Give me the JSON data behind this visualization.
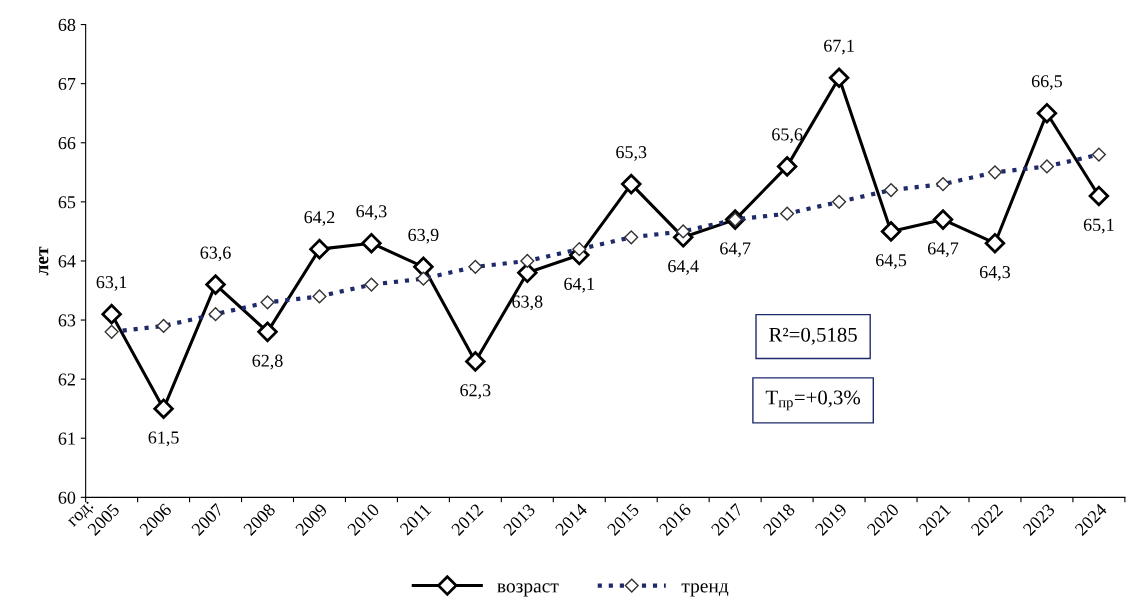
{
  "chart_data": {
    "type": "line",
    "ylabel": "лет",
    "xlabel": "год:",
    "categories": [
      "2005",
      "2006",
      "2007",
      "2008",
      "2009",
      "2010",
      "2011",
      "2012",
      "2013",
      "2014",
      "2015",
      "2016",
      "2017",
      "2018",
      "2019",
      "2020",
      "2021",
      "2022",
      "2023",
      "2024"
    ],
    "series": [
      {
        "name": "возраст",
        "color": "#000000",
        "marker": "diamond",
        "line_style": "solid",
        "values": [
          63.1,
          61.5,
          63.6,
          62.8,
          64.2,
          64.3,
          63.9,
          62.3,
          63.8,
          64.1,
          65.3,
          64.4,
          64.7,
          65.6,
          67.1,
          64.5,
          64.7,
          64.3,
          66.5,
          65.1
        ],
        "value_labels": [
          "63,1",
          "61,5",
          "63,6",
          "62,8",
          "64,2",
          "64,3",
          "63,9",
          "62,3",
          "63,8",
          "64,1",
          "65,3",
          "64,4",
          "64,7",
          "65,6",
          "67,1",
          "64,5",
          "64,7",
          "64,3",
          "66,5",
          "65,1"
        ]
      },
      {
        "name": "тренд",
        "color": "#1f2a6b",
        "marker": "diamond",
        "line_style": "dotted",
        "values": [
          62.8,
          62.9,
          63.1,
          63.3,
          63.4,
          63.6,
          63.7,
          63.9,
          64.0,
          64.2,
          64.4,
          64.5,
          64.7,
          64.8,
          65.0,
          65.2,
          65.3,
          65.5,
          65.6,
          65.8
        ]
      }
    ],
    "ylim": [
      60,
      68
    ],
    "yticks": [
      60,
      61,
      62,
      63,
      64,
      65,
      66,
      67,
      68
    ],
    "grid": false,
    "legend": "bottom",
    "annotations": [
      "R²=0,5185",
      "T$_{пр}$=+0,3%"
    ]
  }
}
